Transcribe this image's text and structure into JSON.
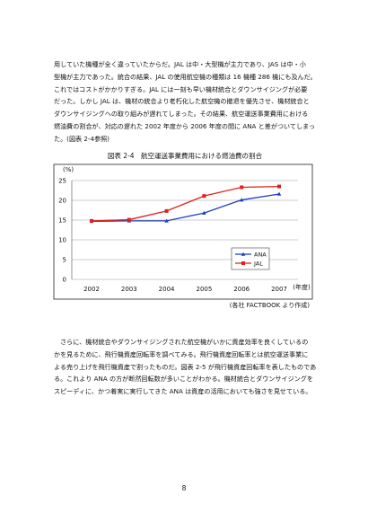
{
  "paragraphs": [
    [
      "用していた機種が全く違っていたからだ。JAL は中・大型機が主力であり、JAS は中・小",
      "型機が主力であった。統合の結果、JAL の使用航空機の種類は 16 機種 286 機にも及んだ。",
      "これではコストがかかりすぎる。JAL には一刻も早い機材統合とダウンサイジングが必要",
      "だった。しかし JAL は、機材の統合より老朽化した航空機の撤退を優先させ、機材統合と",
      "ダウンサイジングへの取り組みが遅れてしまった。その結果、航空運送事業費用における",
      "燃油費の割合が、対応の遅れた 2002 年度から 2006 年度の間に ANA と差がついてしまっ",
      "た。(図表 2-4参照)"
    ],
    [
      "　さらに、機材統合やダウンサイジングされた航空機がいかに資産効率を良くしているの",
      "かを見るために、飛行機資産回転率を調べてみる。飛行機資産回転率とは航空運送事業に",
      "よる売り上げを飛行機資産で割ったものだ。図表 2-5 が飛行機資産回転率を表したものであ",
      "る。これより ANA の方が断然回転数が多いことがわかる。機材統合とダウンサイジングを",
      "スピーディに、かつ着実に実行してきた ANA は資産の活用においても強さを見せている。"
    ]
  ],
  "chart_data": {
    "type": "line",
    "title": "図表 2-4　航空運送事業費用における燃油費の割合",
    "y_label": "(%)",
    "x_label": "(年度)",
    "categories": [
      "2002",
      "2003",
      "2004",
      "2005",
      "2006",
      "2007"
    ],
    "series": [
      {
        "name": "ANA",
        "color": "#1f3fbf",
        "marker": "triangle",
        "values": [
          14.7,
          14.8,
          14.8,
          16.8,
          20.1,
          21.6
        ]
      },
      {
        "name": "JAL",
        "color": "#e0201c",
        "marker": "square",
        "values": [
          14.8,
          15.1,
          17.3,
          21.1,
          23.3,
          23.5
        ]
      }
    ],
    "ylim": [
      0,
      25
    ],
    "yticks": [
      0,
      5,
      10,
      15,
      20,
      25
    ],
    "grid": true,
    "source": "(各社 FACTBOOK より作成)"
  },
  "page_number": "8"
}
